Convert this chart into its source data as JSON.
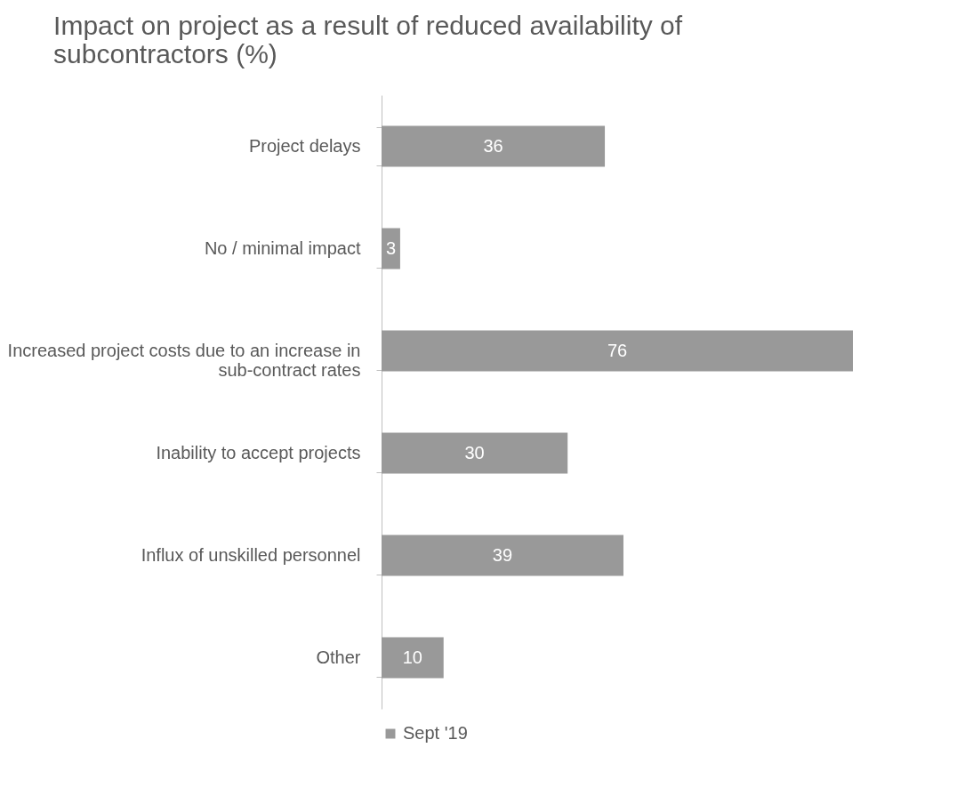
{
  "chart_data": {
    "type": "bar",
    "orientation": "horizontal",
    "title": "Impact on project as a result of reduced availability of subcontractors (%)",
    "categories": [
      "Project delays",
      "No / minimal impact",
      "Increased project costs due to an increase in sub-contract rates",
      "Inability to accept projects",
      "Influx of unskilled personnel",
      "Other"
    ],
    "series": [
      {
        "name": "Sept '19",
        "color": "#999999",
        "values": [
          36,
          3,
          76,
          30,
          39,
          10
        ]
      }
    ],
    "data_labels": true,
    "legend": "bottom",
    "grid": false
  }
}
